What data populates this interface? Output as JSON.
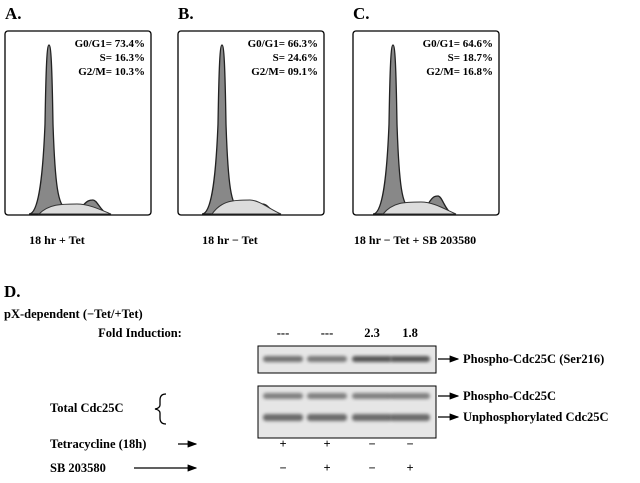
{
  "panels": [
    {
      "label": "A.",
      "stats": [
        "G0/G1= 73.4%",
        "S= 16.3%",
        "G2/M= 10.3%"
      ],
      "caption": "18 hr + Tet"
    },
    {
      "label": "B.",
      "stats": [
        "G0/G1= 66.3%",
        "S= 24.6%",
        "G2/M= 09.1%"
      ],
      "caption": "18 hr − Tet"
    },
    {
      "label": "C.",
      "stats": [
        "G0/G1= 64.6%",
        "S= 18.7%",
        "G2/M= 16.8%"
      ],
      "caption": "18 hr − Tet + SB 203580"
    }
  ],
  "blot": {
    "label": "D.",
    "title": "pX-dependent (−Tet/+Tet)",
    "fold_label": "Fold Induction:",
    "fold": [
      "---",
      "---",
      "2.3",
      "1.8"
    ],
    "band_labels": [
      "Phospho-Cdc25C (Ser216)",
      "Phospho-Cdc25C",
      "Unphosphorylated Cdc25C"
    ],
    "total_label": "Total Cdc25C",
    "rows": [
      {
        "name": "Tetracycline (18h)",
        "signs": [
          "+",
          "+",
          "−",
          "−"
        ]
      },
      {
        "name": "SB 203580",
        "signs": [
          "−",
          "+",
          "−",
          "+"
        ]
      }
    ]
  }
}
